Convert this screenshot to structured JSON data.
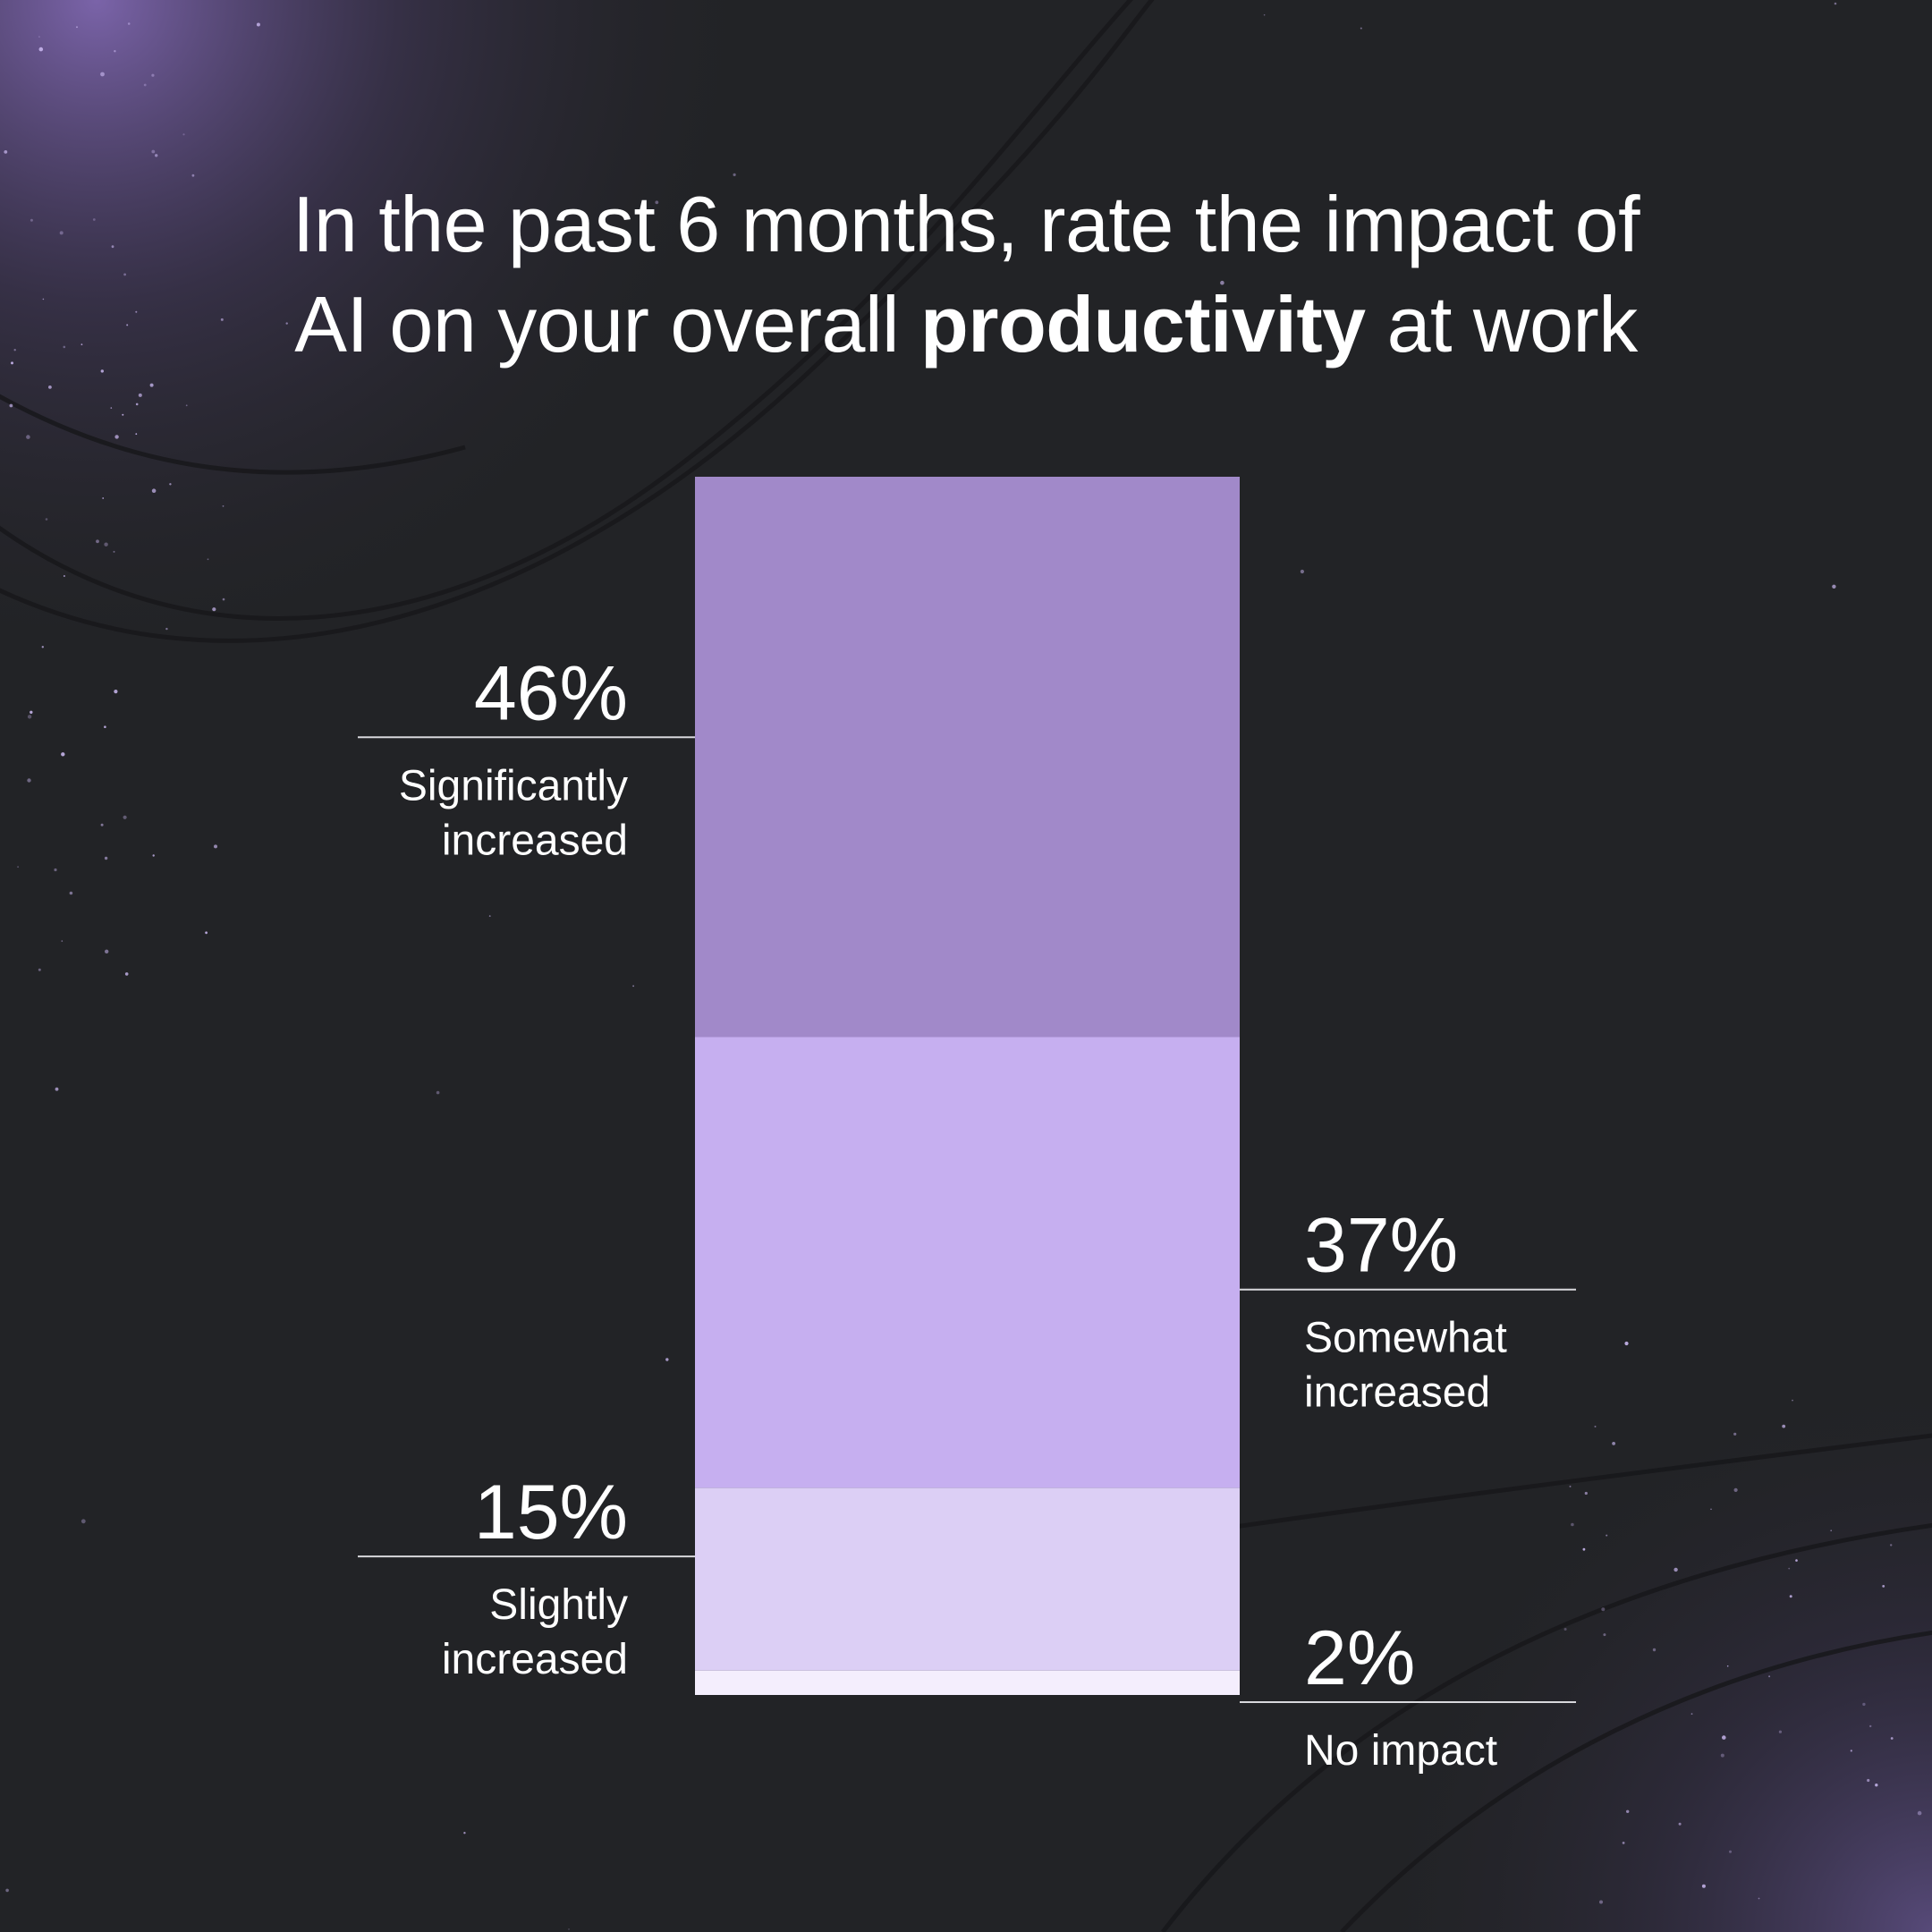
{
  "title": {
    "line1": "In the past 6 months, rate the impact of",
    "line2_before": "AI on your overall ",
    "line2_bold": "productivity",
    "line2_after": " at work"
  },
  "colors": {
    "background": "#222326",
    "glow": "#8a6fc0",
    "segments": [
      "#a189c9",
      "#c6aff0",
      "#dccff5",
      "#f4eefd"
    ],
    "leader_line": "#d8d8dc"
  },
  "chart_data": {
    "type": "bar",
    "stacked": true,
    "orientation": "vertical",
    "title": "In the past 6 months, rate the impact of AI on your overall productivity at work",
    "unit": "%",
    "segments_top_to_bottom": [
      {
        "category": [
          "Significantly",
          "increased"
        ],
        "value": 46,
        "label": "46%",
        "label_side": "left"
      },
      {
        "category": [
          "Somewhat",
          "increased"
        ],
        "value": 37,
        "label": "37%",
        "label_side": "right"
      },
      {
        "category": [
          "Slightly",
          "increased"
        ],
        "value": 15,
        "label": "15%",
        "label_side": "left"
      },
      {
        "category": [
          "No impact"
        ],
        "value": 2,
        "label": "2%",
        "label_side": "right"
      }
    ]
  }
}
